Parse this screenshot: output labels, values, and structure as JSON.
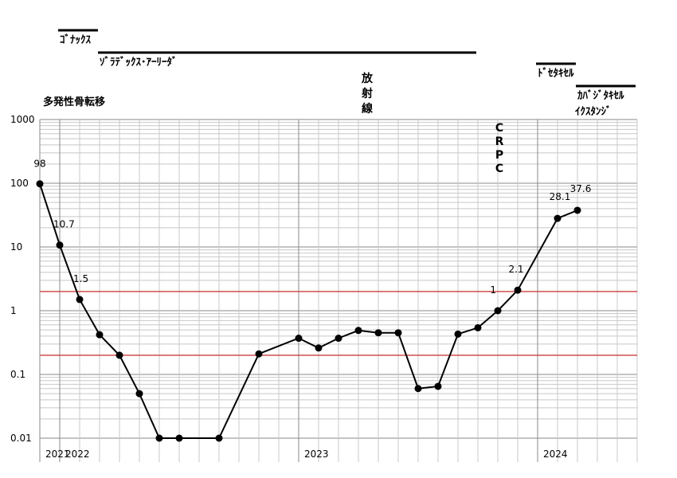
{
  "chart_data": {
    "type": "line",
    "y_scale": "log",
    "ylim": [
      0.01,
      1000
    ],
    "y_tick_labels": [
      "1000",
      "100",
      "10",
      "1",
      "0.1",
      "0.01"
    ],
    "x_tick_labels": [
      {
        "label": "2021",
        "index": 0
      },
      {
        "label": "2022",
        "index": 1
      },
      {
        "label": "2023",
        "index": 13
      },
      {
        "label": "2024",
        "index": 25
      }
    ],
    "x_slots": 30,
    "grid": true,
    "reference_lines": [
      2,
      0.2
    ],
    "reference_color": "#d04040",
    "series": [
      {
        "points": [
          {
            "i": 0,
            "y": 98
          },
          {
            "i": 1,
            "y": 10.7
          },
          {
            "i": 2,
            "y": 1.5
          },
          {
            "i": 3,
            "y": 0.42
          },
          {
            "i": 4,
            "y": 0.2
          },
          {
            "i": 5,
            "y": 0.05
          },
          {
            "i": 6,
            "y": 0.01
          },
          {
            "i": 7,
            "y": 0.01
          },
          {
            "i": 9,
            "y": 0.01
          },
          {
            "i": 11,
            "y": 0.21
          },
          {
            "i": 13,
            "y": 0.37
          },
          {
            "i": 14,
            "y": 0.26
          },
          {
            "i": 15,
            "y": 0.37
          },
          {
            "i": 16,
            "y": 0.49
          },
          {
            "i": 17,
            "y": 0.45
          },
          {
            "i": 18,
            "y": 0.45
          },
          {
            "i": 19,
            "y": 0.06
          },
          {
            "i": 20,
            "y": 0.065
          },
          {
            "i": 21,
            "y": 0.43
          },
          {
            "i": 22,
            "y": 0.54
          },
          {
            "i": 23,
            "y": 1.0
          },
          {
            "i": 24,
            "y": 2.1
          },
          {
            "i": 26,
            "y": 28.1
          },
          {
            "i": 27,
            "y": 37.6
          }
        ]
      }
    ],
    "data_labels": [
      {
        "text": "98",
        "i": 0,
        "y": 98
      },
      {
        "text": "10.7",
        "i": 1,
        "y": 10.7
      },
      {
        "text": "1.5",
        "i": 2,
        "y": 1.5
      },
      {
        "text": "1",
        "i": 23,
        "y": 1.0
      },
      {
        "text": "2.1",
        "i": 24,
        "y": 2.1
      },
      {
        "text": "28.1",
        "i": 26,
        "y": 28.1
      },
      {
        "text": "37.6",
        "i": 27,
        "y": 37.6
      }
    ],
    "annotations": {
      "bars": [
        {
          "label": "ｺﾞﾅｯｸｽ",
          "start": 1,
          "end": 3
        },
        {
          "label": "ｿﾞﾗﾃﾞｯｸｽ･ｱｰﾘｰﾀﾞ",
          "start": 3,
          "end": 22
        },
        {
          "label": "ﾄﾞｾﾀｷｾﾙ",
          "start": 25,
          "end": 27
        },
        {
          "label": "ｶﾊﾞｼﾞﾀｷｾﾙ",
          "start": 27,
          "end": 30
        }
      ],
      "extra_label": "ｲｸｽﾀﾝｼﾞ",
      "metastasis": "多発性骨転移",
      "radiation": "放射線",
      "crpc": "CRPC"
    }
  }
}
